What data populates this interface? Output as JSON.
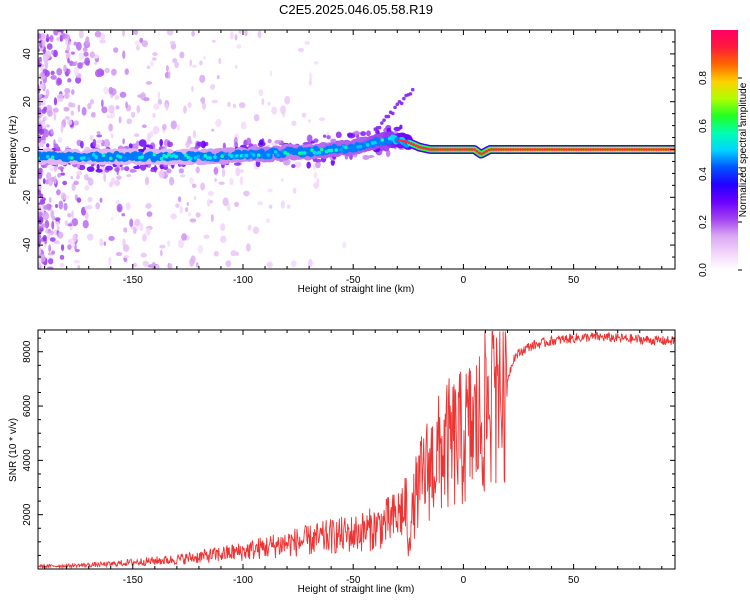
{
  "title": "C2E5.2025.046.05.58.R19",
  "colors": {
    "snr_line": "#ee3333",
    "ridge": "#ff2a40",
    "axis": "#000000",
    "colormap": [
      "#ffffff",
      "#f2d5fb",
      "#d9a6f2",
      "#a040f0",
      "#6a00ff",
      "#2200ff",
      "#0055ff",
      "#00d5ff",
      "#00ffb0",
      "#22ff22",
      "#b0ff00",
      "#ffd000",
      "#ff6600",
      "#ff1a3a",
      "#ff0066"
    ]
  },
  "chart_data": [
    {
      "type": "heatmap",
      "title": "C2E5.2025.046.05.58.R19",
      "xlabel": "Height of straight line (km)",
      "ylabel": "Frequency (Hz)",
      "xlim": [
        -193,
        96
      ],
      "ylim": [
        -50,
        50
      ],
      "xticks": [
        -150,
        -100,
        -50,
        0,
        50
      ],
      "yticks": [
        -40,
        -20,
        0,
        20,
        40
      ],
      "grid": false,
      "colorbar": {
        "label": "Normalized spectral amplitude",
        "range": [
          0,
          1
        ],
        "ticks": [
          "0.0",
          "0.2",
          "0.4",
          "0.6",
          "0.8"
        ]
      },
      "ridge": {
        "description": "frequency ridge of maximum amplitude",
        "x": [
          -190,
          -170,
          -150,
          -130,
          -110,
          -100,
          -90,
          -80,
          -70,
          -60,
          -50,
          -45,
          -40,
          -35,
          -30,
          -25,
          -20,
          -15,
          -10,
          -5,
          0,
          5,
          8,
          12,
          20,
          40,
          60,
          80,
          95
        ],
        "y": [
          -3,
          -3,
          -3,
          -3,
          -3,
          -2,
          -2,
          -1,
          -1,
          0,
          1,
          2,
          3,
          4,
          4,
          3,
          1,
          0,
          0,
          0,
          0,
          0,
          -2,
          0,
          0,
          0,
          0,
          0,
          0
        ],
        "amplitude": [
          0.2,
          0.25,
          0.3,
          0.35,
          0.45,
          0.45,
          0.5,
          0.5,
          0.5,
          0.55,
          0.55,
          0.55,
          0.6,
          0.6,
          0.75,
          0.8,
          0.9,
          0.9,
          0.95,
          0.95,
          0.95,
          0.95,
          0.9,
          0.95,
          1.0,
          1.0,
          1.0,
          1.0,
          1.0
        ]
      }
    },
    {
      "type": "line",
      "xlabel": "Height of straight line (km)",
      "ylabel": "SNR (10 * v/v)",
      "xlim": [
        -193,
        96
      ],
      "ylim": [
        0,
        8800
      ],
      "xticks": [
        -150,
        -100,
        -50,
        0,
        50
      ],
      "yticks": [
        2000,
        4000,
        6000,
        8000
      ],
      "grid": false,
      "series": [
        {
          "x": [
            -193,
            -180,
            -170,
            -160,
            -150,
            -140,
            -130,
            -120,
            -110,
            -100,
            -90,
            -80,
            -70,
            -60,
            -50,
            -45,
            -40,
            -35,
            -30,
            -28,
            -26,
            -25,
            -22,
            -20,
            -18,
            -15,
            -12,
            -10,
            -8,
            -5,
            -2,
            0,
            2,
            5,
            8,
            10,
            12,
            15,
            18,
            20,
            23,
            26,
            30,
            35,
            40,
            50,
            60,
            70,
            80,
            90,
            96
          ],
          "y": [
            100,
            120,
            150,
            180,
            250,
            300,
            350,
            450,
            550,
            650,
            800,
            950,
            1050,
            1200,
            1300,
            1400,
            1500,
            1700,
            1900,
            2200,
            2500,
            900,
            2600,
            3000,
            3500,
            3800,
            4100,
            4300,
            4500,
            4600,
            4700,
            4800,
            5000,
            5200,
            5400,
            5800,
            6200,
            6500,
            6800,
            7000,
            7800,
            8000,
            8200,
            8300,
            8400,
            8500,
            8550,
            8500,
            8450,
            8400,
            8400
          ]
        }
      ]
    }
  ]
}
